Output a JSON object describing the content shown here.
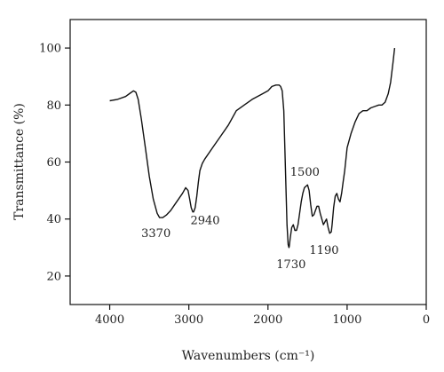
{
  "chart_data": {
    "type": "line",
    "title": "",
    "xlabel": "Wavenumbers (cm⁻¹)",
    "ylabel": "Transmittance (%)",
    "xlim": [
      4500,
      0
    ],
    "ylim": [
      10,
      110
    ],
    "x_reversed": true,
    "grid": false,
    "legend": "none",
    "x_ticks": [
      4000,
      3000,
      2000,
      1000,
      0
    ],
    "y_ticks": [
      20,
      40,
      60,
      80,
      100
    ],
    "line_color": "#111111",
    "series": [
      {
        "name": "",
        "x": [
          4000,
          3900,
          3800,
          3750,
          3700,
          3670,
          3640,
          3600,
          3550,
          3500,
          3450,
          3400,
          3370,
          3330,
          3280,
          3230,
          3180,
          3130,
          3080,
          3040,
          3010,
          2990,
          2970,
          2950,
          2940,
          2920,
          2900,
          2880,
          2860,
          2830,
          2800,
          2700,
          2600,
          2500,
          2400,
          2300,
          2200,
          2100,
          2000,
          1950,
          1900,
          1860,
          1840,
          1820,
          1800,
          1780,
          1760,
          1745,
          1735,
          1730,
          1720,
          1700,
          1680,
          1660,
          1640,
          1620,
          1600,
          1580,
          1560,
          1540,
          1520,
          1500,
          1480,
          1460,
          1440,
          1420,
          1400,
          1380,
          1360,
          1340,
          1320,
          1300,
          1280,
          1260,
          1240,
          1220,
          1200,
          1190,
          1170,
          1150,
          1130,
          1110,
          1090,
          1070,
          1050,
          1030,
          1000,
          950,
          900,
          850,
          800,
          750,
          700,
          650,
          600,
          560,
          520,
          480,
          450,
          420,
          400
        ],
        "y": [
          81.5,
          82,
          83,
          84,
          85,
          84.5,
          82,
          75,
          65,
          55,
          47,
          42,
          40.5,
          40.5,
          41.5,
          43,
          45,
          47,
          49,
          51,
          50,
          47,
          44,
          42.5,
          42.5,
          44,
          48,
          53,
          57,
          59.5,
          61,
          65,
          69,
          73,
          78,
          80,
          82,
          83.5,
          85,
          86.5,
          87,
          87,
          86.5,
          85,
          78,
          58,
          38,
          31,
          30,
          30.5,
          33,
          37,
          38,
          36,
          36,
          38,
          42,
          46,
          49,
          51,
          51.5,
          52,
          50,
          45,
          41,
          41.5,
          43,
          44.5,
          44.5,
          42,
          40,
          38,
          39,
          40,
          37,
          35,
          35.5,
          38,
          44,
          48,
          49,
          47,
          46,
          49,
          53,
          57,
          65,
          70,
          74,
          77,
          78,
          78,
          79,
          79.5,
          80,
          80,
          81,
          84,
          88,
          95,
          100
        ]
      }
    ],
    "annotations": [
      {
        "text": "3370",
        "x": 3370,
        "y": 40.5
      },
      {
        "text": "2940",
        "x": 2940,
        "y": 42.5
      },
      {
        "text": "1730",
        "x": 1730,
        "y": 30
      },
      {
        "text": "1500",
        "x": 1500,
        "y": 52
      },
      {
        "text": "1190",
        "x": 1190,
        "y": 35
      }
    ]
  }
}
